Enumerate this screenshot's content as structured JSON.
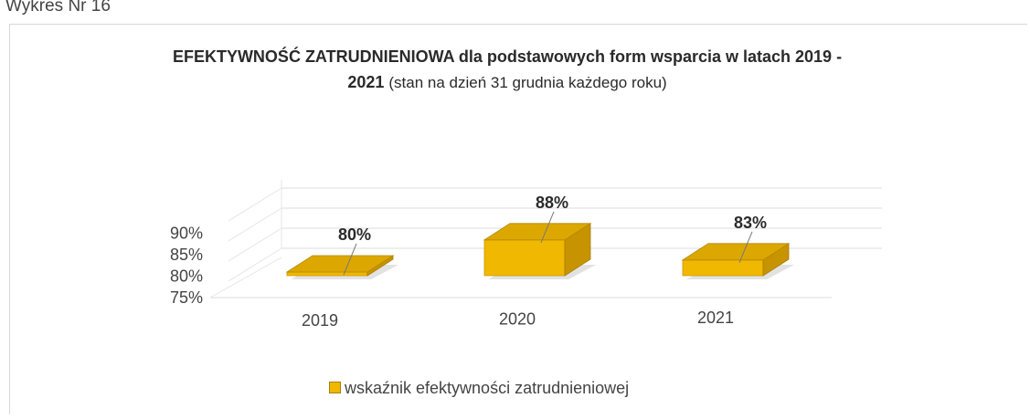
{
  "caption": "Wykres Nr 16",
  "chart_data": {
    "type": "bar",
    "title": "EFEKTYWNOŚĆ ZATRUDNIENIOWA dla podstawowych form wsparcia w latach 2019 - 2021",
    "title_line1": "EFEKTYWNOŚĆ ZATRUDNIENIOWA dla podstawowych form wsparcia w latach 2019 -",
    "title_line2_bold": "2021",
    "subtitle": "(stan na dzień 31 grudnia każdego roku)",
    "categories": [
      "2019",
      "2020",
      "2021"
    ],
    "series": [
      {
        "name": "wskaźnik efektywności zatrudnieniowej",
        "values": [
          80,
          88,
          83
        ],
        "labels": [
          "80%",
          "88%",
          "83%"
        ]
      }
    ],
    "yticks": [
      "75%",
      "80%",
      "85%",
      "90%"
    ],
    "ytick_values": [
      75,
      80,
      85,
      90
    ],
    "ylim": [
      75,
      90
    ],
    "grid": true,
    "legend_position": "bottom",
    "style": "3d-column",
    "bar_color": "#f0b800"
  }
}
